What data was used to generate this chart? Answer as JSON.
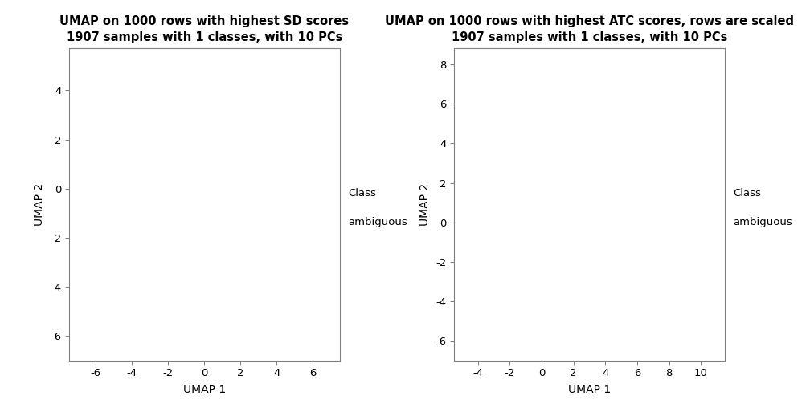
{
  "plot1": {
    "title_line1": "UMAP on 1000 rows with highest SD scores",
    "title_line2": "1907 samples with 1 classes, with 10 PCs",
    "xlabel": "UMAP 1",
    "ylabel": "UMAP 2",
    "xlim": [
      -7.5,
      7.5
    ],
    "ylim": [
      -7.0,
      5.7
    ],
    "xticks": [
      -6,
      -4,
      -2,
      0,
      2,
      4,
      6
    ],
    "yticks": [
      -6,
      -4,
      -2,
      0,
      2,
      4
    ],
    "legend_line1": "Class",
    "legend_line2": "ambiguous"
  },
  "plot2": {
    "title_line1": "UMAP on 1000 rows with highest ATC scores, rows are scaled",
    "title_line2": "1907 samples with 1 classes, with 10 PCs",
    "xlabel": "UMAP 1",
    "ylabel": "UMAP 2",
    "xlim": [
      -5.5,
      11.5
    ],
    "ylim": [
      -7.0,
      8.8
    ],
    "xticks": [
      -4,
      -2,
      0,
      2,
      4,
      6,
      8,
      10
    ],
    "yticks": [
      -6,
      -4,
      -2,
      0,
      2,
      4,
      6,
      8
    ],
    "legend_line1": "Class",
    "legend_line2": "ambiguous"
  },
  "background_color": "#ffffff",
  "spine_color": "#808080",
  "title_fontsize": 10.5,
  "label_fontsize": 10,
  "tick_fontsize": 9.5,
  "legend_fontsize": 9.5
}
